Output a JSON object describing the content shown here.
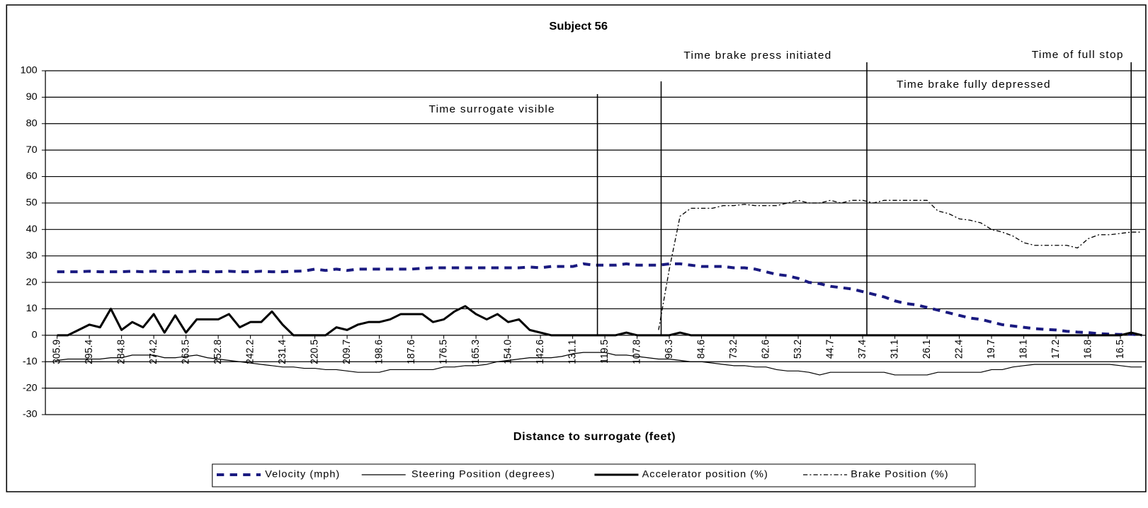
{
  "chart_data": {
    "type": "line",
    "title": "Subject 56",
    "x_label": "Distance to surrogate (feet)",
    "annotations": [
      "Time surrogate visible",
      "Time brake press initiated",
      "Time brake fully depressed",
      "Time of full stop"
    ],
    "categories": [
      "305.9",
      null,
      null,
      "295.4",
      null,
      null,
      "284.8",
      null,
      null,
      "274.2",
      null,
      null,
      "263.5",
      null,
      null,
      "252.8",
      null,
      null,
      "242.2",
      null,
      null,
      "231.4",
      null,
      null,
      "220.5",
      null,
      null,
      "209.7",
      null,
      null,
      "198.6",
      null,
      null,
      "187.6",
      null,
      null,
      "176.5",
      null,
      null,
      "165.3",
      null,
      null,
      "154.0",
      null,
      null,
      "142.6",
      null,
      null,
      "131.1",
      null,
      null,
      "119.5",
      null,
      null,
      "107.8",
      null,
      null,
      "96.3",
      null,
      null,
      "84.6",
      null,
      null,
      "73.2",
      null,
      null,
      "62.6",
      null,
      null,
      "53.2",
      null,
      null,
      "44.7",
      null,
      null,
      "37.4",
      null,
      null,
      "31.1",
      null,
      null,
      "26.1",
      null,
      null,
      "22.4",
      null,
      null,
      "19.7",
      null,
      null,
      "18.1",
      null,
      null,
      "17.2",
      null,
      null,
      "16.8",
      null,
      null,
      "16.5",
      null,
      null
    ],
    "series": [
      {
        "name": "Velocity (mph)",
        "color": "#1a1a80",
        "line_style": "dashed",
        "values": [
          24,
          24,
          24,
          24.2,
          24,
          24,
          24,
          24.2,
          24,
          24.2,
          24,
          24,
          24,
          24.2,
          24,
          24,
          24.2,
          24,
          24,
          24.2,
          24,
          24,
          24.2,
          24.3,
          25,
          24.5,
          25,
          24.5,
          25,
          25,
          25,
          25,
          25,
          25,
          25.3,
          25.5,
          25.5,
          25.5,
          25.5,
          25.5,
          25.5,
          25.5,
          25.5,
          25.5,
          25.8,
          25.5,
          26,
          26,
          26,
          27,
          26.5,
          26.5,
          26.5,
          27,
          26.5,
          26.5,
          26.5,
          27,
          27,
          26.5,
          26,
          26,
          26,
          25.5,
          25.5,
          25,
          24,
          23,
          22.5,
          21.5,
          20,
          19.5,
          18.5,
          18,
          17.5,
          16.5,
          15.5,
          14.5,
          13,
          12,
          11.5,
          10.5,
          9.5,
          8.5,
          7.5,
          6.5,
          6,
          5,
          4,
          3.5,
          3,
          2.5,
          2.2,
          2,
          1.5,
          1.2,
          1,
          0.6,
          0.4,
          0.3,
          0.4,
          0
        ]
      },
      {
        "name": "Steering Position (degrees)",
        "color": "#000000",
        "line_style": "thin",
        "values": [
          -9.5,
          -9,
          -9,
          -9,
          -9,
          -8.5,
          -8.5,
          -7.5,
          -7.5,
          -7.5,
          -8.5,
          -8.5,
          -8,
          -7.5,
          -8.5,
          -9,
          -9.5,
          -10,
          -10.5,
          -11,
          -11.5,
          -12,
          -12,
          -12.5,
          -12.5,
          -13,
          -13,
          -13.5,
          -14,
          -14,
          -14,
          -13,
          -13,
          -13,
          -13,
          -13,
          -12,
          -12,
          -11.5,
          -11.5,
          -11,
          -10,
          -9.5,
          -9,
          -8.5,
          -8.5,
          -8.5,
          -8,
          -7,
          -6.5,
          -6.5,
          -6.5,
          -7.5,
          -7.5,
          -8,
          -8.5,
          -9,
          -9,
          -9.5,
          -10,
          -10,
          -10.5,
          -11,
          -11.5,
          -11.5,
          -12,
          -12,
          -13,
          -13.5,
          -13.5,
          -14,
          -15,
          -14,
          -14,
          -14,
          -14,
          -14,
          -14,
          -15,
          -15,
          -15,
          -15,
          -14,
          -14,
          -14,
          -14,
          -14,
          -13,
          -13,
          -12,
          -11.5,
          -11,
          -11,
          -11,
          -11,
          -11,
          -11,
          -11,
          -11,
          -11.5,
          -12,
          -12
        ]
      },
      {
        "name": "Accelerator position (%)",
        "color": "#000000",
        "line_style": "thick",
        "values": [
          0,
          0,
          2,
          4,
          3,
          10,
          2,
          5,
          3,
          8,
          1,
          7.5,
          1,
          6,
          6,
          6,
          8,
          3,
          5,
          5,
          9,
          4,
          0,
          0,
          0,
          0,
          3,
          2,
          4,
          5,
          5,
          6,
          8,
          8,
          8,
          5,
          6,
          9,
          11,
          8,
          6,
          8,
          5,
          6,
          2,
          1,
          0,
          0,
          0,
          0,
          0,
          0,
          0,
          1,
          0,
          0,
          0,
          0,
          1,
          0,
          0,
          0,
          0,
          0,
          0,
          0,
          0,
          0,
          0,
          0,
          0,
          0,
          0,
          0,
          0,
          0,
          0,
          0,
          0,
          0,
          0,
          0,
          0,
          0,
          0,
          0,
          0,
          0,
          0,
          0,
          0,
          0,
          0,
          0,
          0,
          0,
          0,
          0,
          0,
          0,
          1,
          0
        ]
      },
      {
        "name": "Brake Position (%)",
        "color": "#000000",
        "line_style": "dotted",
        "values": [
          null,
          null,
          null,
          null,
          null,
          null,
          null,
          null,
          null,
          null,
          null,
          null,
          null,
          null,
          null,
          null,
          null,
          null,
          null,
          null,
          null,
          null,
          null,
          null,
          null,
          null,
          null,
          null,
          null,
          null,
          null,
          null,
          null,
          null,
          null,
          null,
          null,
          null,
          null,
          null,
          null,
          null,
          null,
          null,
          null,
          null,
          null,
          null,
          null,
          null,
          null,
          null,
          null,
          null,
          null,
          null,
          2,
          25,
          45,
          48,
          48,
          48,
          49,
          49,
          49.5,
          49,
          49,
          49,
          50,
          51,
          50,
          50,
          51,
          50,
          51,
          51,
          50,
          51,
          51,
          51,
          51,
          51,
          47,
          46,
          44,
          43.5,
          42.5,
          40,
          39,
          37.5,
          35,
          34,
          34,
          34,
          34,
          33,
          36.5,
          38,
          38,
          38.5,
          39,
          39
        ]
      }
    ],
    "ylim": [
      -30,
      100
    ],
    "yticks": [
      -30,
      -20,
      -10,
      0,
      10,
      20,
      30,
      40,
      50,
      60,
      70,
      80,
      90,
      100
    ],
    "grid": true,
    "legend": "bottom"
  }
}
